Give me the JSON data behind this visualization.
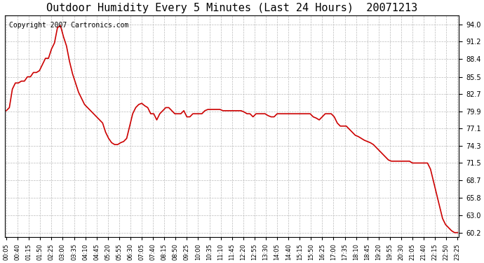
{
  "title": "Outdoor Humidity Every 5 Minutes (Last 24 Hours)  20071213",
  "copyright_text": "Copyright 2007 Cartronics.com",
  "line_color": "#cc0000",
  "background_color": "#ffffff",
  "grid_color": "#bbbbbb",
  "ylim": [
    59.5,
    95.5
  ],
  "yticks": [
    60.2,
    63.0,
    65.8,
    68.7,
    71.5,
    74.3,
    77.1,
    79.9,
    82.7,
    85.5,
    88.4,
    91.2,
    94.0
  ],
  "x_labels": [
    "00:05",
    "00:40",
    "01:15",
    "01:50",
    "02:25",
    "03:00",
    "03:35",
    "04:10",
    "04:45",
    "05:20",
    "05:55",
    "06:30",
    "07:05",
    "07:40",
    "08:15",
    "08:50",
    "09:25",
    "10:00",
    "10:35",
    "11:10",
    "11:45",
    "12:20",
    "12:55",
    "13:30",
    "14:05",
    "14:40",
    "15:15",
    "15:50",
    "16:25",
    "17:00",
    "17:35",
    "18:10",
    "18:45",
    "19:20",
    "19:55",
    "20:30",
    "21:05",
    "21:40",
    "22:15",
    "22:50",
    "23:25"
  ],
  "y_data": [
    80.0,
    80.5,
    83.5,
    84.5,
    84.5,
    84.8,
    84.8,
    85.5,
    85.5,
    86.2,
    86.2,
    86.5,
    87.5,
    88.5,
    88.5,
    90.0,
    91.0,
    93.5,
    93.8,
    92.0,
    90.5,
    88.0,
    86.0,
    84.5,
    83.0,
    82.0,
    81.0,
    80.5,
    80.0,
    79.5,
    79.0,
    78.5,
    78.0,
    76.5,
    75.5,
    74.8,
    74.5,
    74.5,
    74.8,
    75.0,
    75.5,
    77.5,
    79.5,
    80.5,
    81.0,
    81.2,
    80.8,
    80.5,
    79.5,
    79.5,
    78.5,
    79.5,
    80.0,
    80.5,
    80.5,
    80.0,
    79.5,
    79.5,
    79.5,
    80.0,
    79.0,
    79.0,
    79.5,
    79.5,
    79.5,
    79.5,
    80.0,
    80.2,
    80.2,
    80.2,
    80.2,
    80.2,
    80.0,
    80.0,
    80.0,
    80.0,
    80.0,
    80.0,
    80.0,
    79.8,
    79.5,
    79.5,
    79.0,
    79.5,
    79.5,
    79.5,
    79.5,
    79.2,
    79.0,
    79.0,
    79.5,
    79.5,
    79.5,
    79.5,
    79.5,
    79.5,
    79.5,
    79.5,
    79.5,
    79.5,
    79.5,
    79.5,
    79.0,
    78.8,
    78.5,
    79.0,
    79.5,
    79.5,
    79.5,
    79.0,
    78.0,
    77.5,
    77.5,
    77.5,
    77.0,
    76.5,
    76.0,
    75.8,
    75.5,
    75.2,
    75.0,
    74.8,
    74.5,
    74.0,
    73.5,
    73.0,
    72.5,
    72.0,
    71.8,
    71.8,
    71.8,
    71.8,
    71.8,
    71.8,
    71.8,
    71.5,
    71.5,
    71.5,
    71.5,
    71.5,
    71.5,
    70.5,
    68.5,
    66.5,
    64.5,
    62.5,
    61.5,
    61.0,
    60.5,
    60.2,
    60.2
  ]
}
